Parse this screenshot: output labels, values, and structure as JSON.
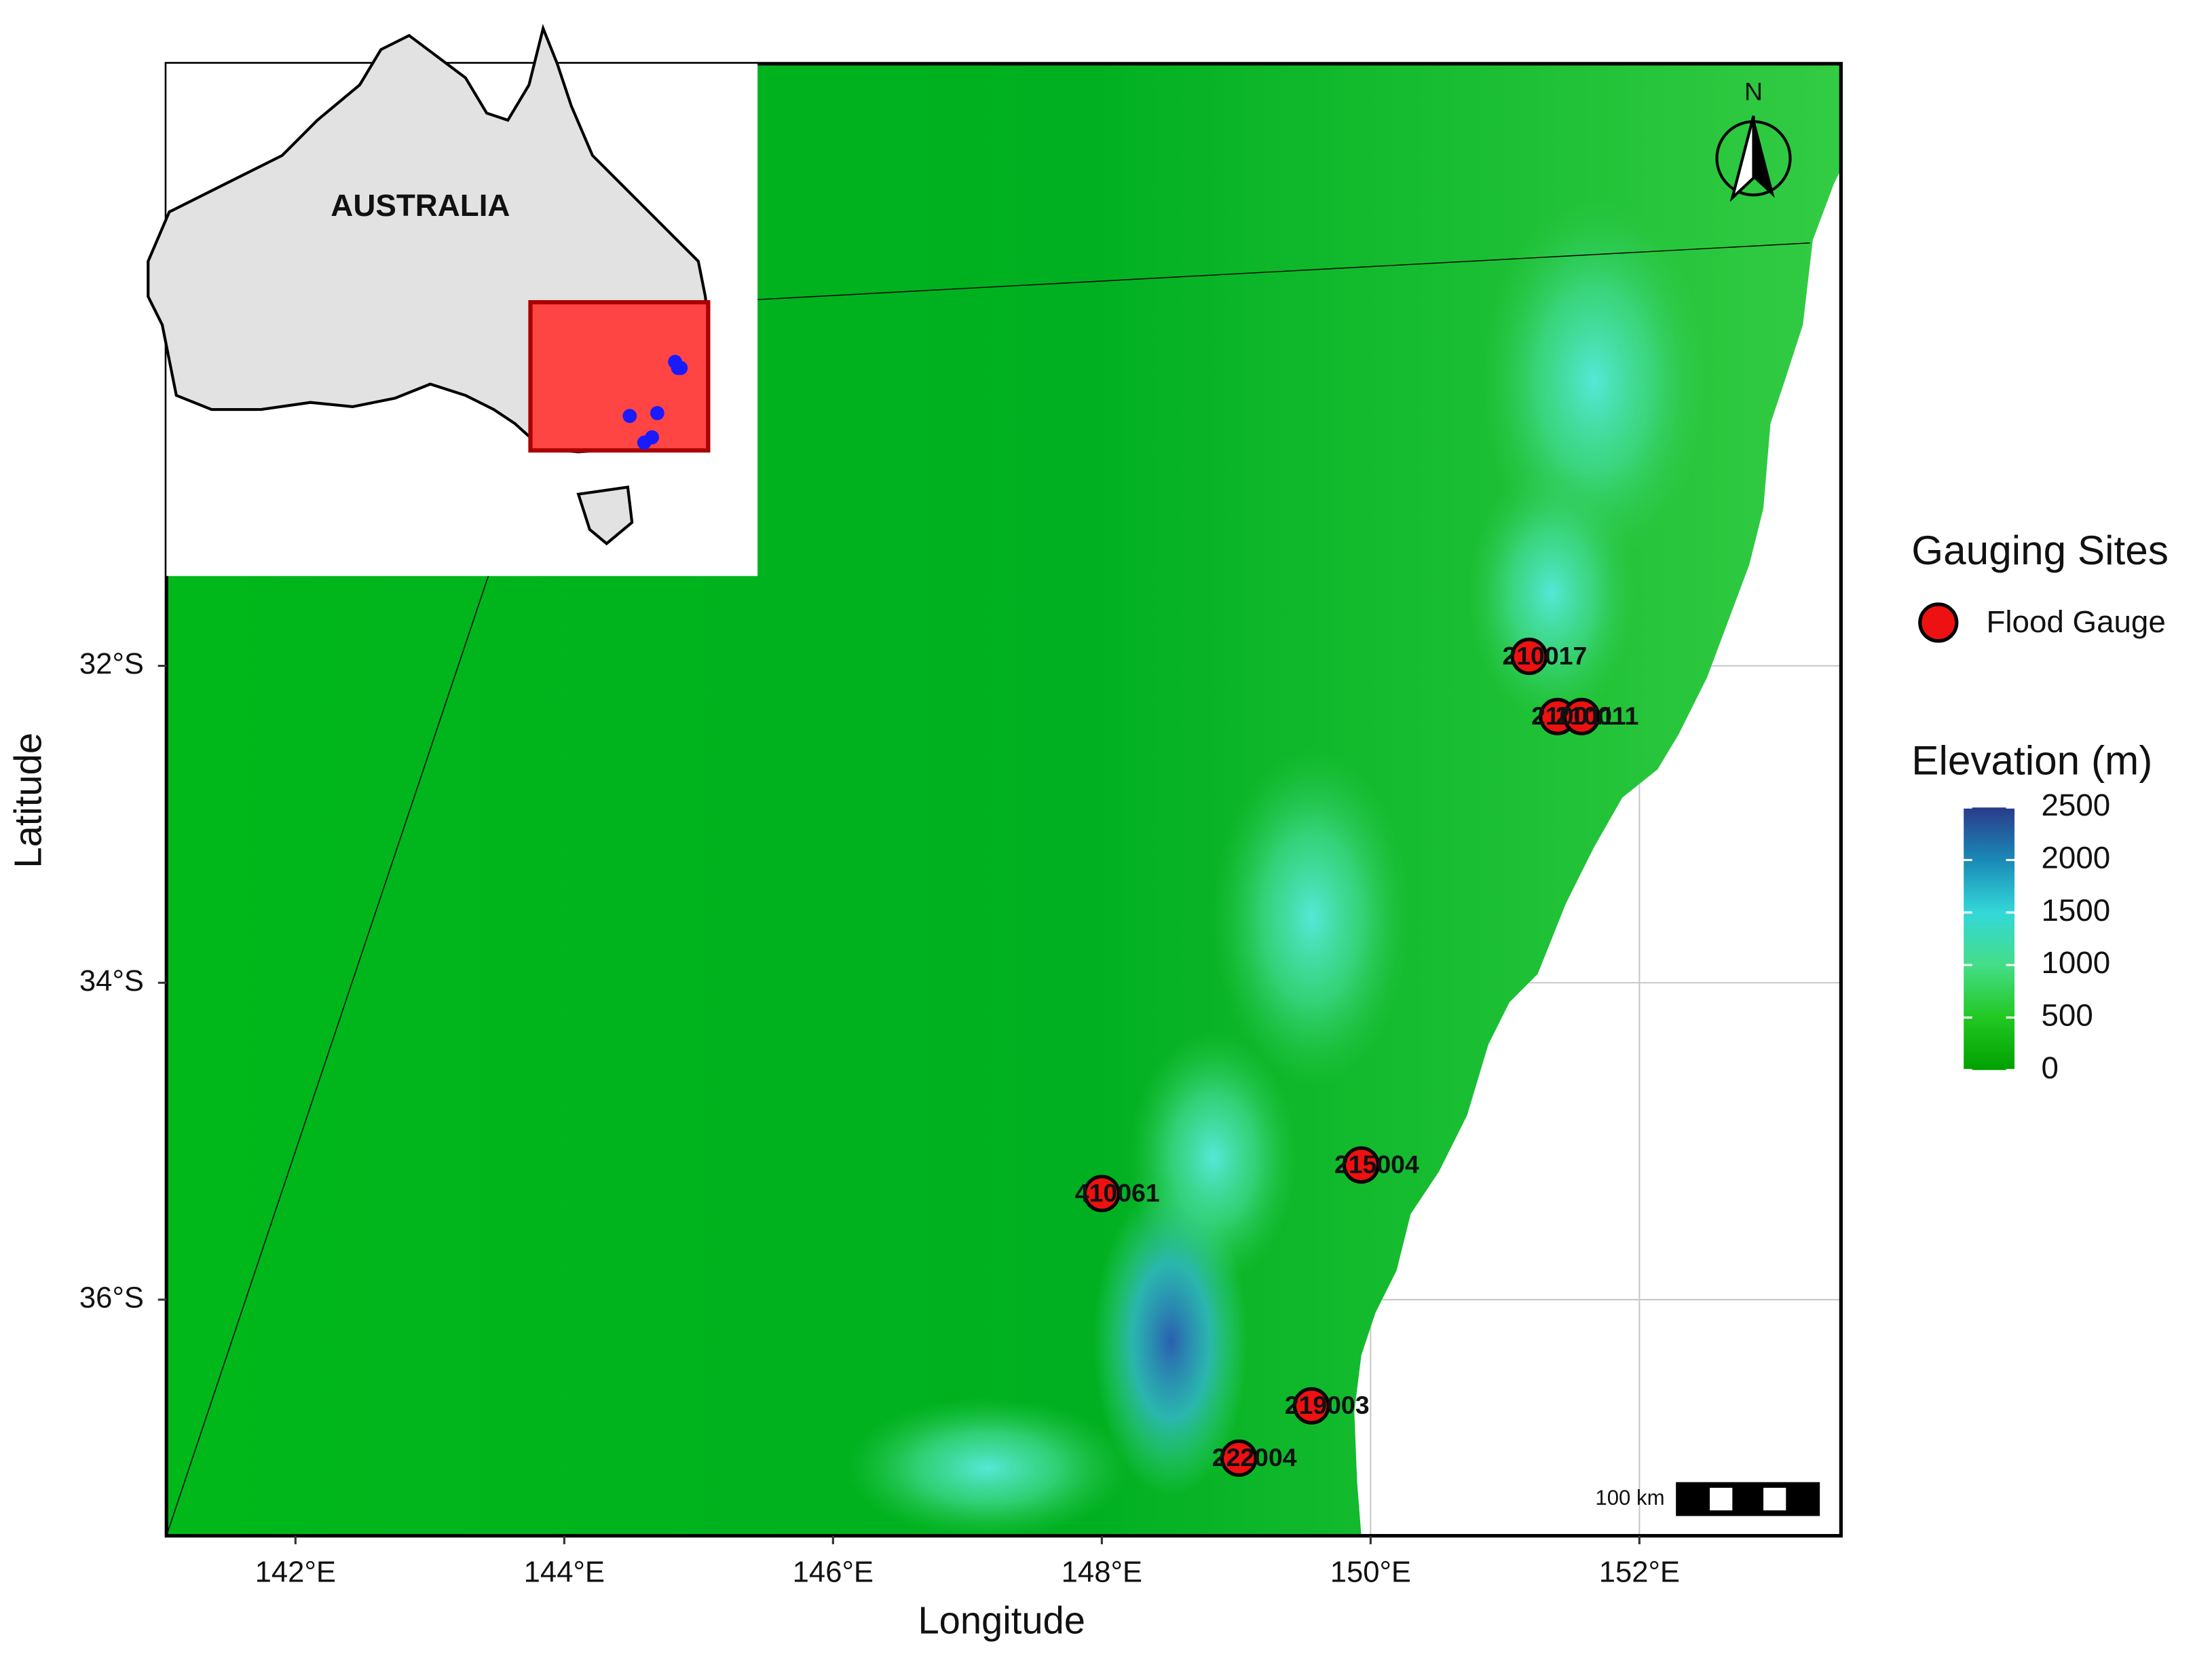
{
  "map": {
    "xlabel": "Longitude",
    "ylabel": "Latitude",
    "xlim": [
      141.04,
      153.5
    ],
    "ylim": [
      -37.49,
      -28.2
    ],
    "xticks": [
      {
        "value": 142,
        "label": "142°E"
      },
      {
        "value": 144,
        "label": "144°E"
      },
      {
        "value": 146,
        "label": "146°E"
      },
      {
        "value": 148,
        "label": "148°E"
      },
      {
        "value": 150,
        "label": "150°E"
      },
      {
        "value": 152,
        "label": "152°E"
      }
    ],
    "yticks": [
      {
        "value": -32,
        "label": "32°S"
      },
      {
        "value": -34,
        "label": "34°S"
      },
      {
        "value": -36,
        "label": "36°S"
      }
    ],
    "grid": true,
    "site_color": "#ee1111",
    "sites": [
      {
        "name": "210017",
        "lon": 151.18,
        "lat": -31.94
      },
      {
        "name": "210011",
        "lon": 151.39,
        "lat": -32.32
      },
      {
        "name": "210011",
        "lon": 151.57,
        "lat": -32.32
      },
      {
        "name": "215004",
        "lon": 149.93,
        "lat": -35.15
      },
      {
        "name": "410061",
        "lon": 148.0,
        "lat": -35.33
      },
      {
        "name": "219003",
        "lon": 149.56,
        "lat": -36.67
      },
      {
        "name": "222004",
        "lon": 149.02,
        "lat": -37.0
      }
    ],
    "legend": {
      "title": "Gauging Sites",
      "entry": "Flood Gauge"
    },
    "colorbar": {
      "title": "Elevation (m)",
      "lim": [
        0,
        2500
      ],
      "ticks": [
        0,
        500,
        1000,
        1500,
        2000,
        2500
      ]
    },
    "inset": {
      "label": "AUSTRALIA"
    },
    "scale_bar": "100 km",
    "north": "N"
  }
}
